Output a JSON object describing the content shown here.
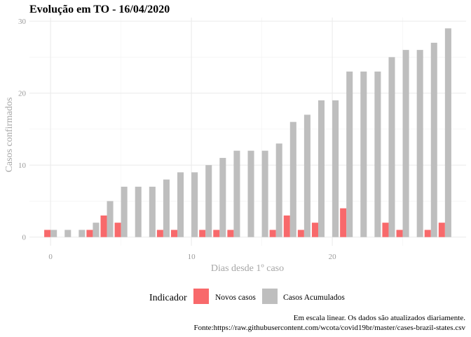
{
  "chart_data": {
    "type": "bar",
    "title": "Evolução em TO  -  16/04/2020",
    "xlabel": "Dias desde 1º caso",
    "ylabel": "Casos confirmados",
    "xlim": [
      -1.5,
      29.5
    ],
    "ylim": [
      -1.2,
      30.5
    ],
    "x_ticks": [
      0,
      10,
      20
    ],
    "y_ticks": [
      0,
      10,
      20,
      30
    ],
    "grid": true,
    "legend": {
      "title": "Indicador",
      "position": "bottom",
      "entries": [
        {
          "label": "Novos casos",
          "color": "#f8696b"
        },
        {
          "label": "Casos Acumulados",
          "color": "#bebebe"
        }
      ]
    },
    "x": [
      0,
      1,
      2,
      3,
      4,
      5,
      6,
      7,
      8,
      9,
      10,
      11,
      12,
      13,
      14,
      15,
      16,
      17,
      18,
      19,
      20,
      21,
      22,
      23,
      24,
      25,
      26,
      27,
      28
    ],
    "series": [
      {
        "name": "Novos casos",
        "color": "#f8696b",
        "values": [
          1,
          0,
          0,
          1,
          3,
          2,
          0,
          0,
          1,
          1,
          0,
          1,
          1,
          1,
          0,
          0,
          1,
          3,
          1,
          2,
          0,
          4,
          0,
          0,
          2,
          1,
          0,
          1,
          2
        ]
      },
      {
        "name": "Casos Acumulados",
        "color": "#bebebe",
        "values": [
          1,
          1,
          1,
          2,
          5,
          7,
          7,
          7,
          8,
          9,
          9,
          10,
          11,
          12,
          12,
          12,
          13,
          16,
          17,
          19,
          19,
          23,
          23,
          23,
          25,
          26,
          26,
          27,
          29
        ]
      }
    ],
    "caption": [
      "Em escala linear. Os dados são atualizados diariamente.",
      "Fonte:https://raw.githubusercontent.com/wcota/covid19br/master/cases-brazil-states.csv"
    ]
  }
}
